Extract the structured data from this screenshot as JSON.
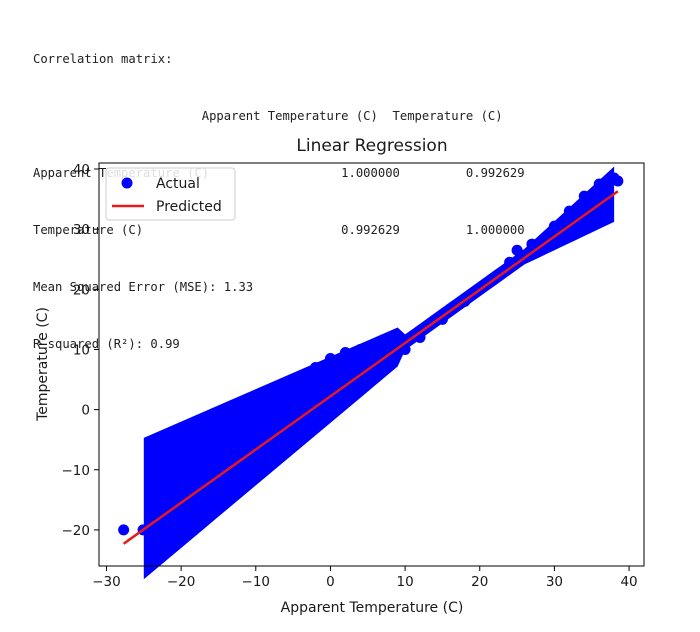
{
  "console_output": {
    "corr_heading": "Correlation matrix:",
    "corr_header_line": "                       Apparent Temperature (C)  Temperature (C)",
    "corr_row_1": "Apparent Temperature (C)                  1.000000         0.992629",
    "corr_row_2": "Temperature (C)                           0.992629         1.000000",
    "mse_line": "Mean Squared Error (MSE): 1.33",
    "r2_line": "R-squared (R²): 0.99"
  },
  "chart_data": {
    "type": "scatter",
    "title": "Linear Regression",
    "xlabel": "Apparent Temperature (C)",
    "ylabel": "Temperature (C)",
    "xlim": [
      -31,
      42
    ],
    "ylim": [
      -26,
      41
    ],
    "xticks": [
      -30,
      -20,
      -10,
      0,
      10,
      20,
      30,
      40
    ],
    "yticks": [
      -20,
      -10,
      0,
      10,
      20,
      30,
      40
    ],
    "xtick_labels": [
      "−30",
      "−20",
      "−10",
      "0",
      "10",
      "20",
      "30",
      "40"
    ],
    "ytick_labels": [
      "−20",
      "−10",
      "0",
      "10",
      "20",
      "30",
      "40"
    ],
    "legend_position": "upper-left",
    "series": [
      {
        "name": "Actual",
        "kind": "scatter",
        "color": "#0000ff",
        "x": [
          -27.7,
          -25.1,
          -24.0,
          -23.5,
          -20.0,
          -19.8,
          -21.5,
          -17.0,
          -24,
          -22,
          -20,
          -18,
          -16,
          -14,
          -12,
          -10,
          -8,
          -6,
          -4,
          -2,
          0,
          2,
          4,
          6,
          8,
          -22,
          -20,
          -18,
          -16,
          -14,
          -12,
          -10,
          -8,
          -6,
          -4,
          -2,
          0,
          2,
          4,
          6,
          8,
          10,
          12,
          15,
          18,
          21,
          24,
          27,
          30,
          32,
          34,
          36,
          38,
          25,
          27,
          29,
          31,
          33,
          35,
          37,
          38.5,
          37.5,
          36
        ],
        "y": [
          -20.0,
          -20.0,
          -14.0,
          -17.0,
          -20.0,
          -10.0,
          -12.0,
          -17.0,
          -15.5,
          -13.0,
          -11.0,
          -8.0,
          -6.0,
          -4.0,
          -2.5,
          -0.5,
          1.5,
          3.5,
          5.5,
          7.0,
          8.5,
          9.5,
          10.0,
          10.0,
          10.0,
          -22.5,
          -20.0,
          -17.5,
          -15.5,
          -13.5,
          -11.5,
          -9.0,
          -7.0,
          -5.0,
          -3.0,
          -1.0,
          0.5,
          2.5,
          4.5,
          6.5,
          8.0,
          10.0,
          12.0,
          15.0,
          18.0,
          21.0,
          24.5,
          27.5,
          30.5,
          33.0,
          35.5,
          37.5,
          38.5,
          26.5,
          27.5,
          28.5,
          29.5,
          31.0,
          32.5,
          34.0,
          38.0,
          38.5,
          32.5
        ]
      },
      {
        "name": "Predicted",
        "kind": "line",
        "color": "#e41a1c",
        "x": [
          -27.7,
          38.5
        ],
        "y": [
          -22.3,
          36.3
        ]
      }
    ]
  }
}
